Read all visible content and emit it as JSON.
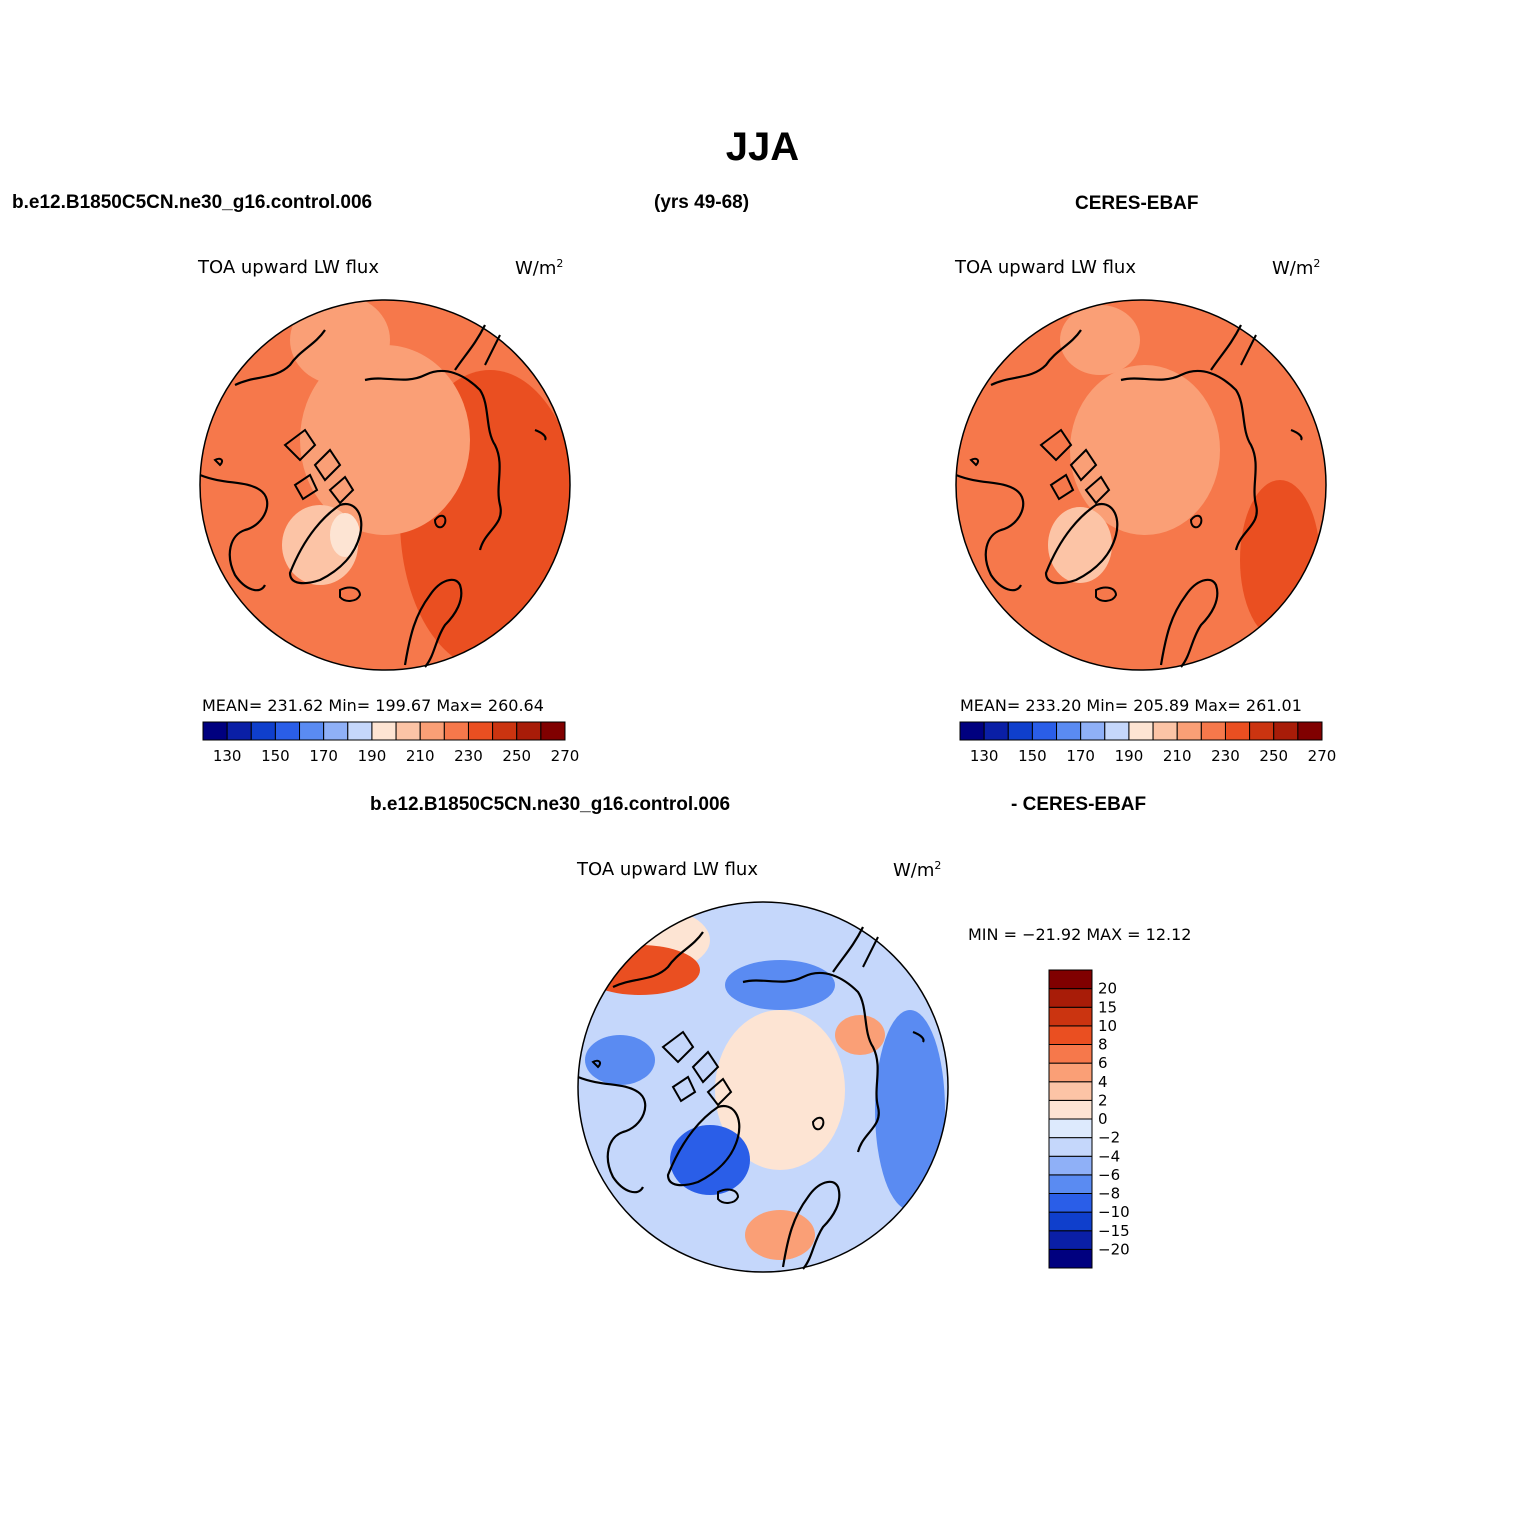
{
  "header": {
    "title": "JJA",
    "model_case": "b.e12.B1850C5CN.ne30_g16.control.006",
    "years": "(yrs 49-68)",
    "obs_name": "CERES-EBAF",
    "diff_model": "b.e12.B1850C5CN.ne30_g16.control.006",
    "diff_obs": "- CERES-EBAF"
  },
  "panels": {
    "model": {
      "variable": "TOA upward LW flux",
      "units": "W/m",
      "units_sup": "2",
      "stats": "MEAN= 231.62   Min= 199.67   Max= 260.64",
      "mean": 231.62,
      "min": 199.67,
      "max": 260.64
    },
    "obs": {
      "variable": "TOA upward LW flux",
      "units": "W/m",
      "units_sup": "2",
      "stats": "MEAN= 233.20   Min= 205.89   Max= 261.01",
      "mean": 233.2,
      "min": 205.89,
      "max": 261.01
    },
    "diff": {
      "variable": "TOA upward LW flux",
      "units": "W/m",
      "units_sup": "2",
      "stats": "MIN = −21.92 MAX =   12.12",
      "min": -21.92,
      "max": 12.12
    }
  },
  "colorbars": {
    "absolute": {
      "colors": [
        "#00007f",
        "#0a1fa6",
        "#0f3fcc",
        "#2a5ee8",
        "#5a8bf2",
        "#8fb0f7",
        "#c5d7fb",
        "#fde4d3",
        "#fcc4a6",
        "#fa9f76",
        "#f6784b",
        "#ea4f21",
        "#cb3410",
        "#a81c08",
        "#800000"
      ],
      "tick_labels": [
        "130",
        "150",
        "170",
        "190",
        "210",
        "230",
        "250",
        "270"
      ]
    },
    "difference": {
      "colors": [
        "#00007f",
        "#0a1fa6",
        "#0f3fcc",
        "#2a5ee8",
        "#5a8bf2",
        "#8fb0f7",
        "#c5d7fb",
        "#ddeafd",
        "#fde4d3",
        "#fcc4a6",
        "#fa9f76",
        "#f6784b",
        "#ea4f21",
        "#cb3410",
        "#a81c08",
        "#800000"
      ],
      "tick_labels": [
        "20",
        "15",
        "10",
        "8",
        "6",
        "4",
        "2",
        "0",
        "−2",
        "−4",
        "−6",
        "−8",
        "−10",
        "−15",
        "−20"
      ]
    }
  },
  "map_colors": {
    "model_base": "#f6784b",
    "model_ocean_high": "#ea4f21",
    "model_arctic": "#fa9f76",
    "model_greenland": "#fcc4a6",
    "obs_base": "#f6784b",
    "obs_arctic": "#fa9f76",
    "obs_greenland": "#fcc4a6",
    "diff_base": "#c5d7fb",
    "diff_arctic": "#fde4d3",
    "diff_negative": "#5a8bf2",
    "diff_strong_negative": "#2a5ee8",
    "diff_positive": "#fa9f76",
    "diff_strong_positive": "#ea4f21"
  }
}
